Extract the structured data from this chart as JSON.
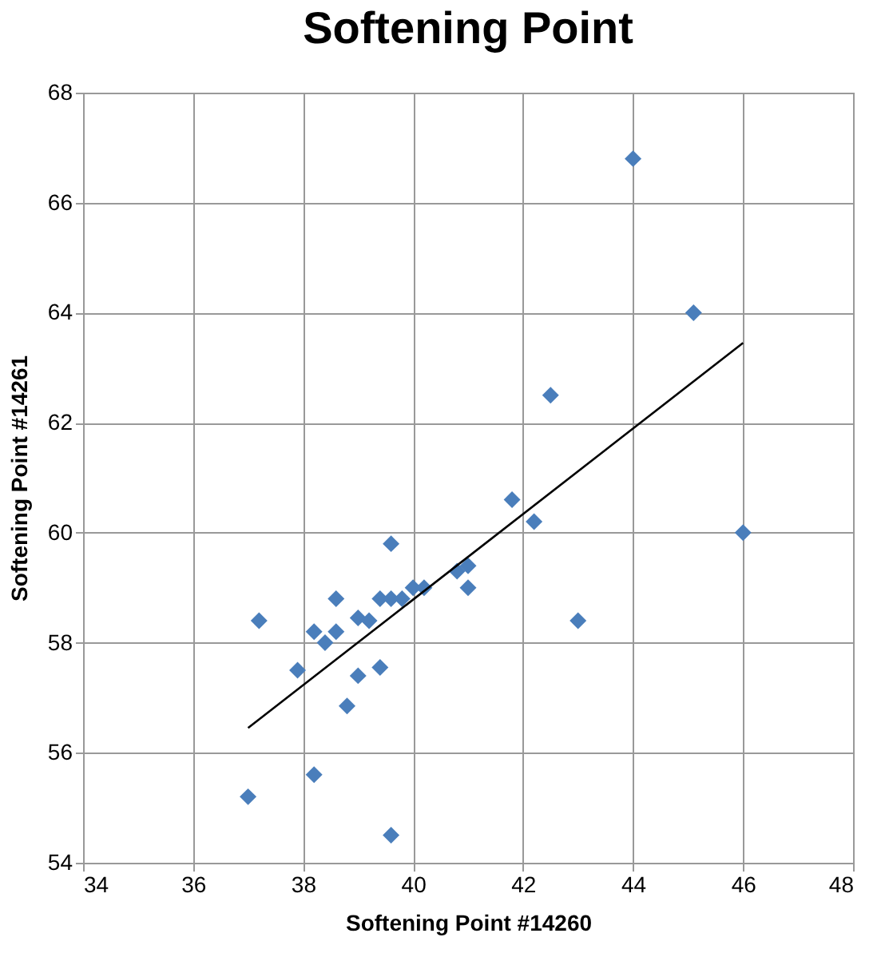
{
  "chart_data": {
    "type": "scatter",
    "title": "Softening Point",
    "xlabel": "Softening Point #14260",
    "ylabel": "Softening Point #14261",
    "xlim": [
      34,
      48
    ],
    "xticks": [
      34,
      36,
      38,
      40,
      42,
      44,
      46,
      48
    ],
    "ylim": [
      54,
      68
    ],
    "yticks": [
      54,
      56,
      58,
      60,
      62,
      64,
      66,
      68
    ],
    "grid": true,
    "series": [
      {
        "marker": "diamond",
        "color": "#4a7ebb",
        "x": [
          37.0,
          37.2,
          38.2,
          39.6,
          37.9,
          38.2,
          38.4,
          38.6,
          38.6,
          38.8,
          39.0,
          39.0,
          39.2,
          39.4,
          39.4,
          39.6,
          39.6,
          39.8,
          40.0,
          40.2,
          40.8,
          41.0,
          41.0,
          41.8,
          42.2,
          42.5,
          43.0,
          44.0,
          45.1,
          46.0
        ],
        "values": [
          55.2,
          58.4,
          55.6,
          54.5,
          57.5,
          58.2,
          58.0,
          58.2,
          58.8,
          56.85,
          57.4,
          58.45,
          58.4,
          57.55,
          58.8,
          59.8,
          58.8,
          58.8,
          59.0,
          59.0,
          59.3,
          59.4,
          59.0,
          60.6,
          60.2,
          62.5,
          58.4,
          66.8,
          64.0,
          60.0
        ]
      },
      {
        "type": "line",
        "color": "#000000",
        "x": [
          37.0,
          46.0
        ],
        "values": [
          56.45,
          63.45
        ]
      }
    ]
  }
}
